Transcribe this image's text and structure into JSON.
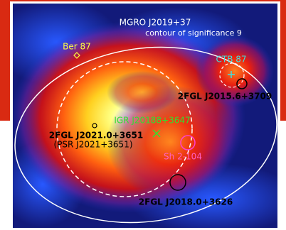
{
  "title": "MGRO J2019+37",
  "subtitle": "contour of significance 9",
  "labels": {
    "ber87": "Ber 87",
    "ctb87": "CTB 87",
    "fgl2015": "2FGL J2015.6+3709",
    "igr": "IGR J20188+3647",
    "fgl2021": "2FGL J2021.0+3651",
    "psr": "(PSR J2021+3651)",
    "sh2104": "Sh 2-104",
    "fgl2018": "2FGL J2018.0+3626"
  }
}
